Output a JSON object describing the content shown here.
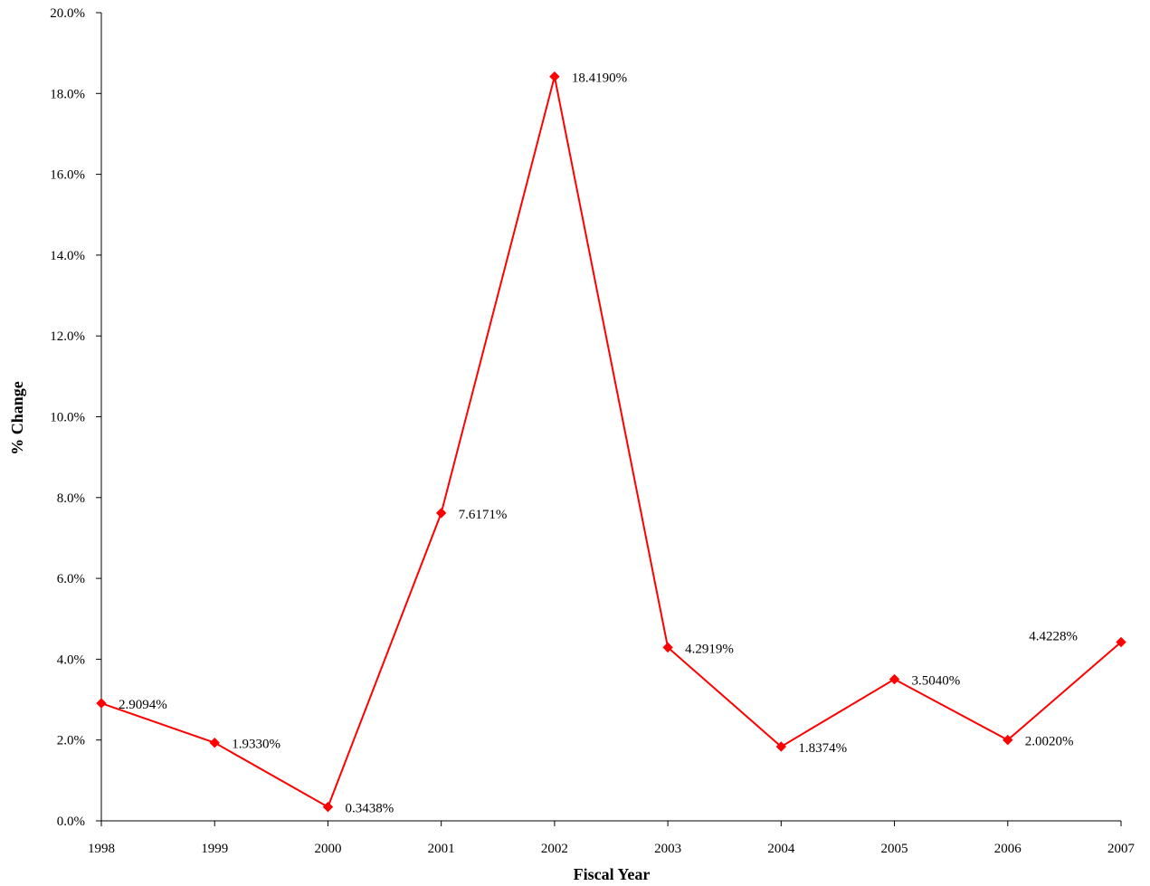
{
  "chart_data": {
    "type": "line",
    "title": "",
    "xlabel": "Fiscal Year",
    "ylabel": "% Change",
    "categories": [
      "1998",
      "1999",
      "2000",
      "2001",
      "2002",
      "2003",
      "2004",
      "2005",
      "2006",
      "2007"
    ],
    "series": [
      {
        "values": [
          2.9094,
          1.933,
          0.3438,
          7.6171,
          18.419,
          4.2919,
          1.8374,
          3.504,
          2.002,
          4.4228
        ],
        "data_labels": [
          "2.9094%",
          "1.9330%",
          "0.3438%",
          "7.6171%",
          "18.4190%",
          "4.2919%",
          "1.8374%",
          "3.5040%",
          "2.0020%",
          "4.4228%"
        ],
        "color": "#ff0000",
        "marker": "diamond"
      }
    ],
    "ylim": [
      0,
      20
    ],
    "yticks": [
      0,
      2,
      4,
      6,
      8,
      10,
      12,
      14,
      16,
      18,
      20
    ],
    "ytick_labels": [
      "0.0%",
      "2.0%",
      "4.0%",
      "6.0%",
      "8.0%",
      "10.0%",
      "12.0%",
      "14.0%",
      "16.0%",
      "18.0%",
      "20.0%"
    ],
    "grid": false,
    "legend": "none"
  }
}
